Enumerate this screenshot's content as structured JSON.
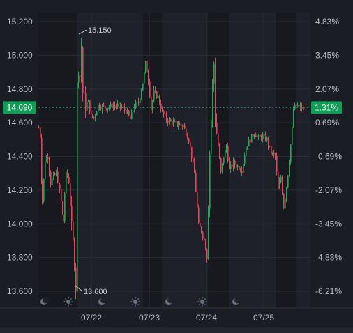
{
  "chart_data": {
    "type": "candlestick",
    "x_dates": [
      "07/22",
      "07/23",
      "07/24",
      "07/25"
    ],
    "y_left_ticks": [
      "15.200",
      "15.000",
      "14.800",
      "14.600",
      "14.400",
      "14.200",
      "14.000",
      "13.800",
      "13.600"
    ],
    "y_left_range": [
      13.55,
      15.25
    ],
    "y_right_ticks": [
      "4.83%",
      "3.45%",
      "2.07%",
      "0.69%",
      "-0.69%",
      "-2.07%",
      "-3.45%",
      "-4.83%",
      "-6.21%"
    ],
    "reference_price": 14.5,
    "last_price": "14.690",
    "last_change": "1.31%",
    "high_label": "15.150",
    "low_label": "13.600",
    "session_icons": [
      "moon-icon",
      "sun-icon",
      "moon-icon",
      "sun-icon",
      "moon-icon",
      "sun-icon",
      "moon-icon"
    ],
    "colors": {
      "up": "#26a65b",
      "down": "#e0485a",
      "tag": "#0f9d58",
      "grid": "#2a2d36",
      "background": "#1b1d24"
    },
    "grid": true
  }
}
